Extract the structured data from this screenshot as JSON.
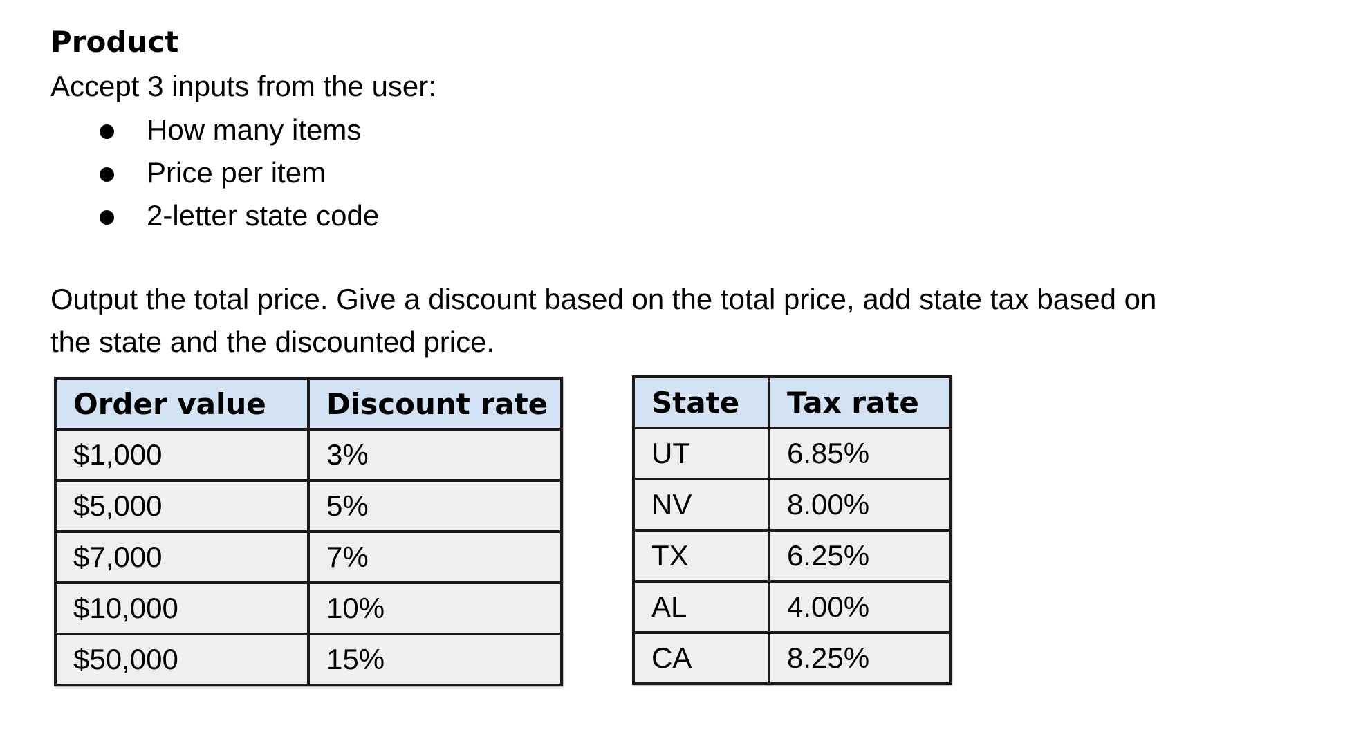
{
  "heading": "Product",
  "intro": "Accept 3 inputs from the user:",
  "inputs": [
    "How many items",
    "Price per item",
    "2-letter state code"
  ],
  "output": {
    "line1": "Output the total price. Give a discount based on the total price, add state tax based on",
    "line2": "the state and the discounted price."
  },
  "discount_table": {
    "headers": [
      "Order value",
      "Discount rate"
    ],
    "rows": [
      [
        "$1,000",
        "3%"
      ],
      [
        "$5,000",
        "5%"
      ],
      [
        "$7,000",
        "7%"
      ],
      [
        "$10,000",
        "10%"
      ],
      [
        "$50,000",
        "15%"
      ]
    ]
  },
  "tax_table": {
    "headers": [
      "State",
      "Tax rate"
    ],
    "rows": [
      [
        "UT",
        "6.85%"
      ],
      [
        "NV",
        "8.00%"
      ],
      [
        "TX",
        "6.25%"
      ],
      [
        "AL",
        "4.00%"
      ],
      [
        "CA",
        "8.25%"
      ]
    ]
  },
  "colors": {
    "header_fill": "#d3e3f3",
    "cell_fill": "#efefef",
    "border": "#1a1a1a"
  }
}
